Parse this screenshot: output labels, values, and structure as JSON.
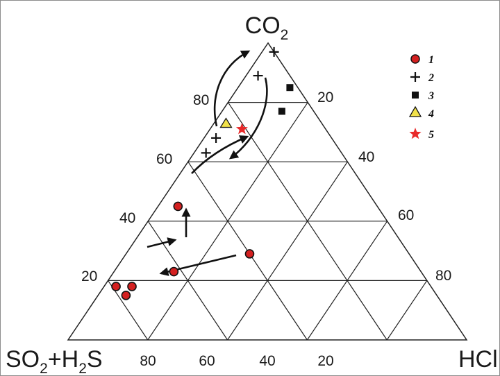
{
  "diagram": {
    "type": "ternary",
    "vertices": {
      "top": {
        "main": "CO",
        "sub": "2"
      },
      "left": {
        "main1": "SO",
        "sub1": "2",
        "main2": "+H",
        "sub2": "2",
        "main3": "S"
      },
      "right": {
        "main": "HCl"
      }
    },
    "left_edge_ticks": [
      "80",
      "60",
      "40",
      "20"
    ],
    "right_edge_ticks": [
      "20",
      "40",
      "60",
      "80"
    ],
    "bottom_edge_ticks": [
      "80",
      "60",
      "40",
      "20"
    ],
    "legend": [
      {
        "symbol": "circle",
        "color": "#d42020",
        "label": "1"
      },
      {
        "symbol": "plus",
        "color": "#111111",
        "label": "2"
      },
      {
        "symbol": "square",
        "color": "#111111",
        "label": "3"
      },
      {
        "symbol": "triangle",
        "color": "#f2e24a",
        "label": "4"
      },
      {
        "symbol": "star",
        "color": "#e82a2a",
        "label": "5"
      }
    ],
    "points": [
      {
        "group": "1",
        "co2": 45,
        "hcl": 5
      },
      {
        "group": "1",
        "co2": 23,
        "hcl": 15
      },
      {
        "group": "1",
        "co2": 29,
        "hcl": 31
      },
      {
        "group": "1",
        "co2": 18,
        "hcl": 3
      },
      {
        "group": "1",
        "co2": 18,
        "hcl": 7
      },
      {
        "group": "1",
        "co2": 15,
        "hcl": 7
      },
      {
        "group": "2",
        "co2": 97,
        "hcl": 3
      },
      {
        "group": "2",
        "co2": 89,
        "hcl": 3
      },
      {
        "group": "2",
        "co2": 68,
        "hcl": 3
      },
      {
        "group": "2",
        "co2": 63,
        "hcl": 3
      },
      {
        "group": "3",
        "co2": 85,
        "hcl": 13
      },
      {
        "group": "3",
        "co2": 77,
        "hcl": 15
      },
      {
        "group": "4",
        "co2": 73,
        "hcl": 3
      },
      {
        "group": "5",
        "co2": 71,
        "hcl": 8
      }
    ],
    "colors": {
      "lines": "#222222",
      "point_fill": "#d42020",
      "star": "#e82a2a",
      "triangle": "#f2e24a"
    }
  }
}
